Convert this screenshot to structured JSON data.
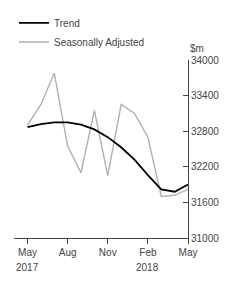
{
  "chart_data": {
    "type": "line",
    "ylabel": "$m",
    "categories": [
      "May",
      null,
      null,
      "Aug",
      null,
      null,
      "Nov",
      null,
      null,
      "Feb",
      null,
      null,
      "May"
    ],
    "series": [
      {
        "name": "Seasonally Adjusted",
        "color": "#b0b0b0",
        "values": [
          32900,
          33250,
          33780,
          32550,
          32100,
          33150,
          32050,
          33250,
          33100,
          32700,
          31700,
          31720,
          31820
        ]
      },
      {
        "name": "Trend",
        "color": "#000000",
        "values": [
          32870,
          32920,
          32950,
          32950,
          32910,
          32830,
          32700,
          32530,
          32320,
          32060,
          31820,
          31780,
          31900
        ]
      }
    ],
    "annotations": [
      {
        "text": "2017",
        "x": 0
      },
      {
        "text": "2018",
        "x": 9
      }
    ],
    "ylim": [
      31000,
      34000
    ],
    "yticks": [
      31000,
      31600,
      32200,
      32800,
      33400,
      34000
    ],
    "grid": false,
    "legend": "upper left"
  }
}
